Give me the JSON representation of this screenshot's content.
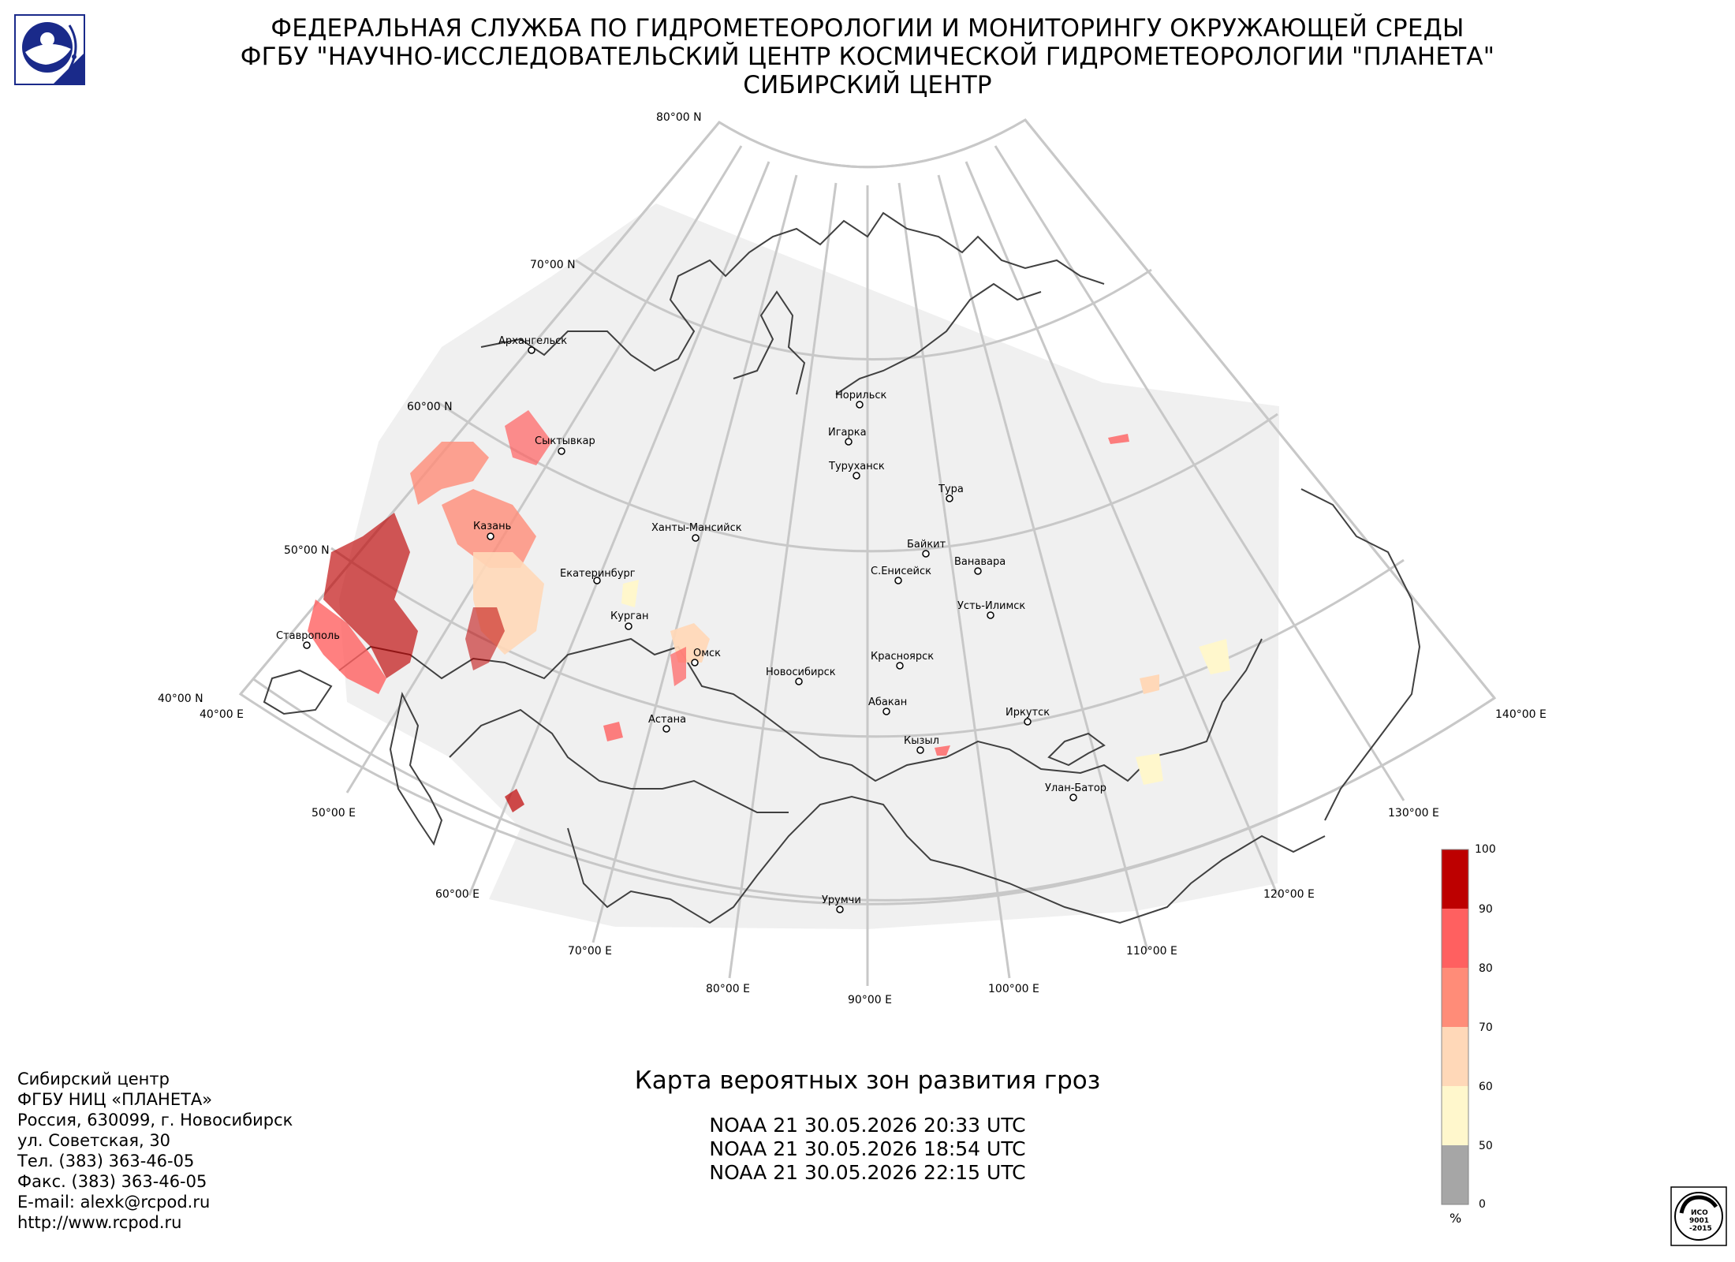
{
  "header": {
    "line1": "ФЕДЕРАЛЬНАЯ СЛУЖБА ПО ГИДРОМЕТЕОРОЛОГИИ И МОНИТОРИНГУ ОКРУЖАЮЩЕЙ СРЕДЫ",
    "line2": "ФГБУ \"НАУЧНО-ИССЛЕДОВАТЕЛЬСКИЙ ЦЕНТР КОСМИЧЕСКОЙ ГИДРОМЕТЕОРОЛОГИИ \"ПЛАНЕТА\"",
    "line3": "СИБИРСКИЙ ЦЕНТР"
  },
  "graticule": {
    "lat_labels": [
      "80°00 N",
      "70°00 N",
      "60°00 N",
      "50°00 N",
      "40°00 N"
    ],
    "lon_labels": [
      "40°00 E",
      "50°00 E",
      "60°00 E",
      "70°00 E",
      "80°00 E",
      "90°00 E",
      "100°00 E",
      "110°00 E",
      "120°00 E",
      "130°00 E",
      "140°00 E"
    ]
  },
  "cities": [
    "Архангельск",
    "Сыктывкар",
    "Казань",
    "Екатеринбург",
    "Курган",
    "Ставрополь",
    "Ханты-Мансийск",
    "Омск",
    "Астана",
    "Новосибирск",
    "Норильск",
    "Игарка",
    "Туруханск",
    "Тура",
    "Байкит",
    "Ванавара",
    "С.Енисейск",
    "Усть-Илимск",
    "Красноярск",
    "Абакан",
    "Кызыл",
    "Иркутск",
    "Улан-Батор",
    "Урумчи"
  ],
  "legend": {
    "unit": "%",
    "ticks": [
      "100",
      "90",
      "80",
      "70",
      "60",
      "50",
      "0"
    ],
    "bands": [
      {
        "from": 90,
        "to": 100,
        "color": "#bd0000"
      },
      {
        "from": 80,
        "to": 90,
        "color": "#ff6060"
      },
      {
        "from": 70,
        "to": 80,
        "color": "#ff8c78"
      },
      {
        "from": 60,
        "to": 70,
        "color": "#ffd8b8"
      },
      {
        "from": 50,
        "to": 60,
        "color": "#fff7cc"
      },
      {
        "from": 0,
        "to": 50,
        "color": "#a6a6a6"
      }
    ]
  },
  "map_title": "Карта вероятных зон развития гроз",
  "passes": [
    "NOAA 21 30.05.2026  20:33 UTC",
    "NOAA 21 30.05.2026  18:54 UTC",
    "NOAA 21 30.05.2026  22:15 UTC"
  ],
  "contact": [
    "Сибирский центр",
    "ФГБУ НИЦ «ПЛАНЕТА»",
    "Россия, 630099, г. Новосибирск",
    "ул. Советская, 30",
    "Тел. (383) 363-46-05",
    "Факс. (383) 363-46-05",
    "E-mail: alexk@rcpod.ru",
    "http://www.rcpod.ru"
  ],
  "cert": {
    "line1": "ИСО",
    "line2": "9001",
    "line3": "-2015"
  },
  "colors": {
    "coverage": "#f0f0f0",
    "graticule": "#c8c8c8",
    "coast": "#404040"
  }
}
